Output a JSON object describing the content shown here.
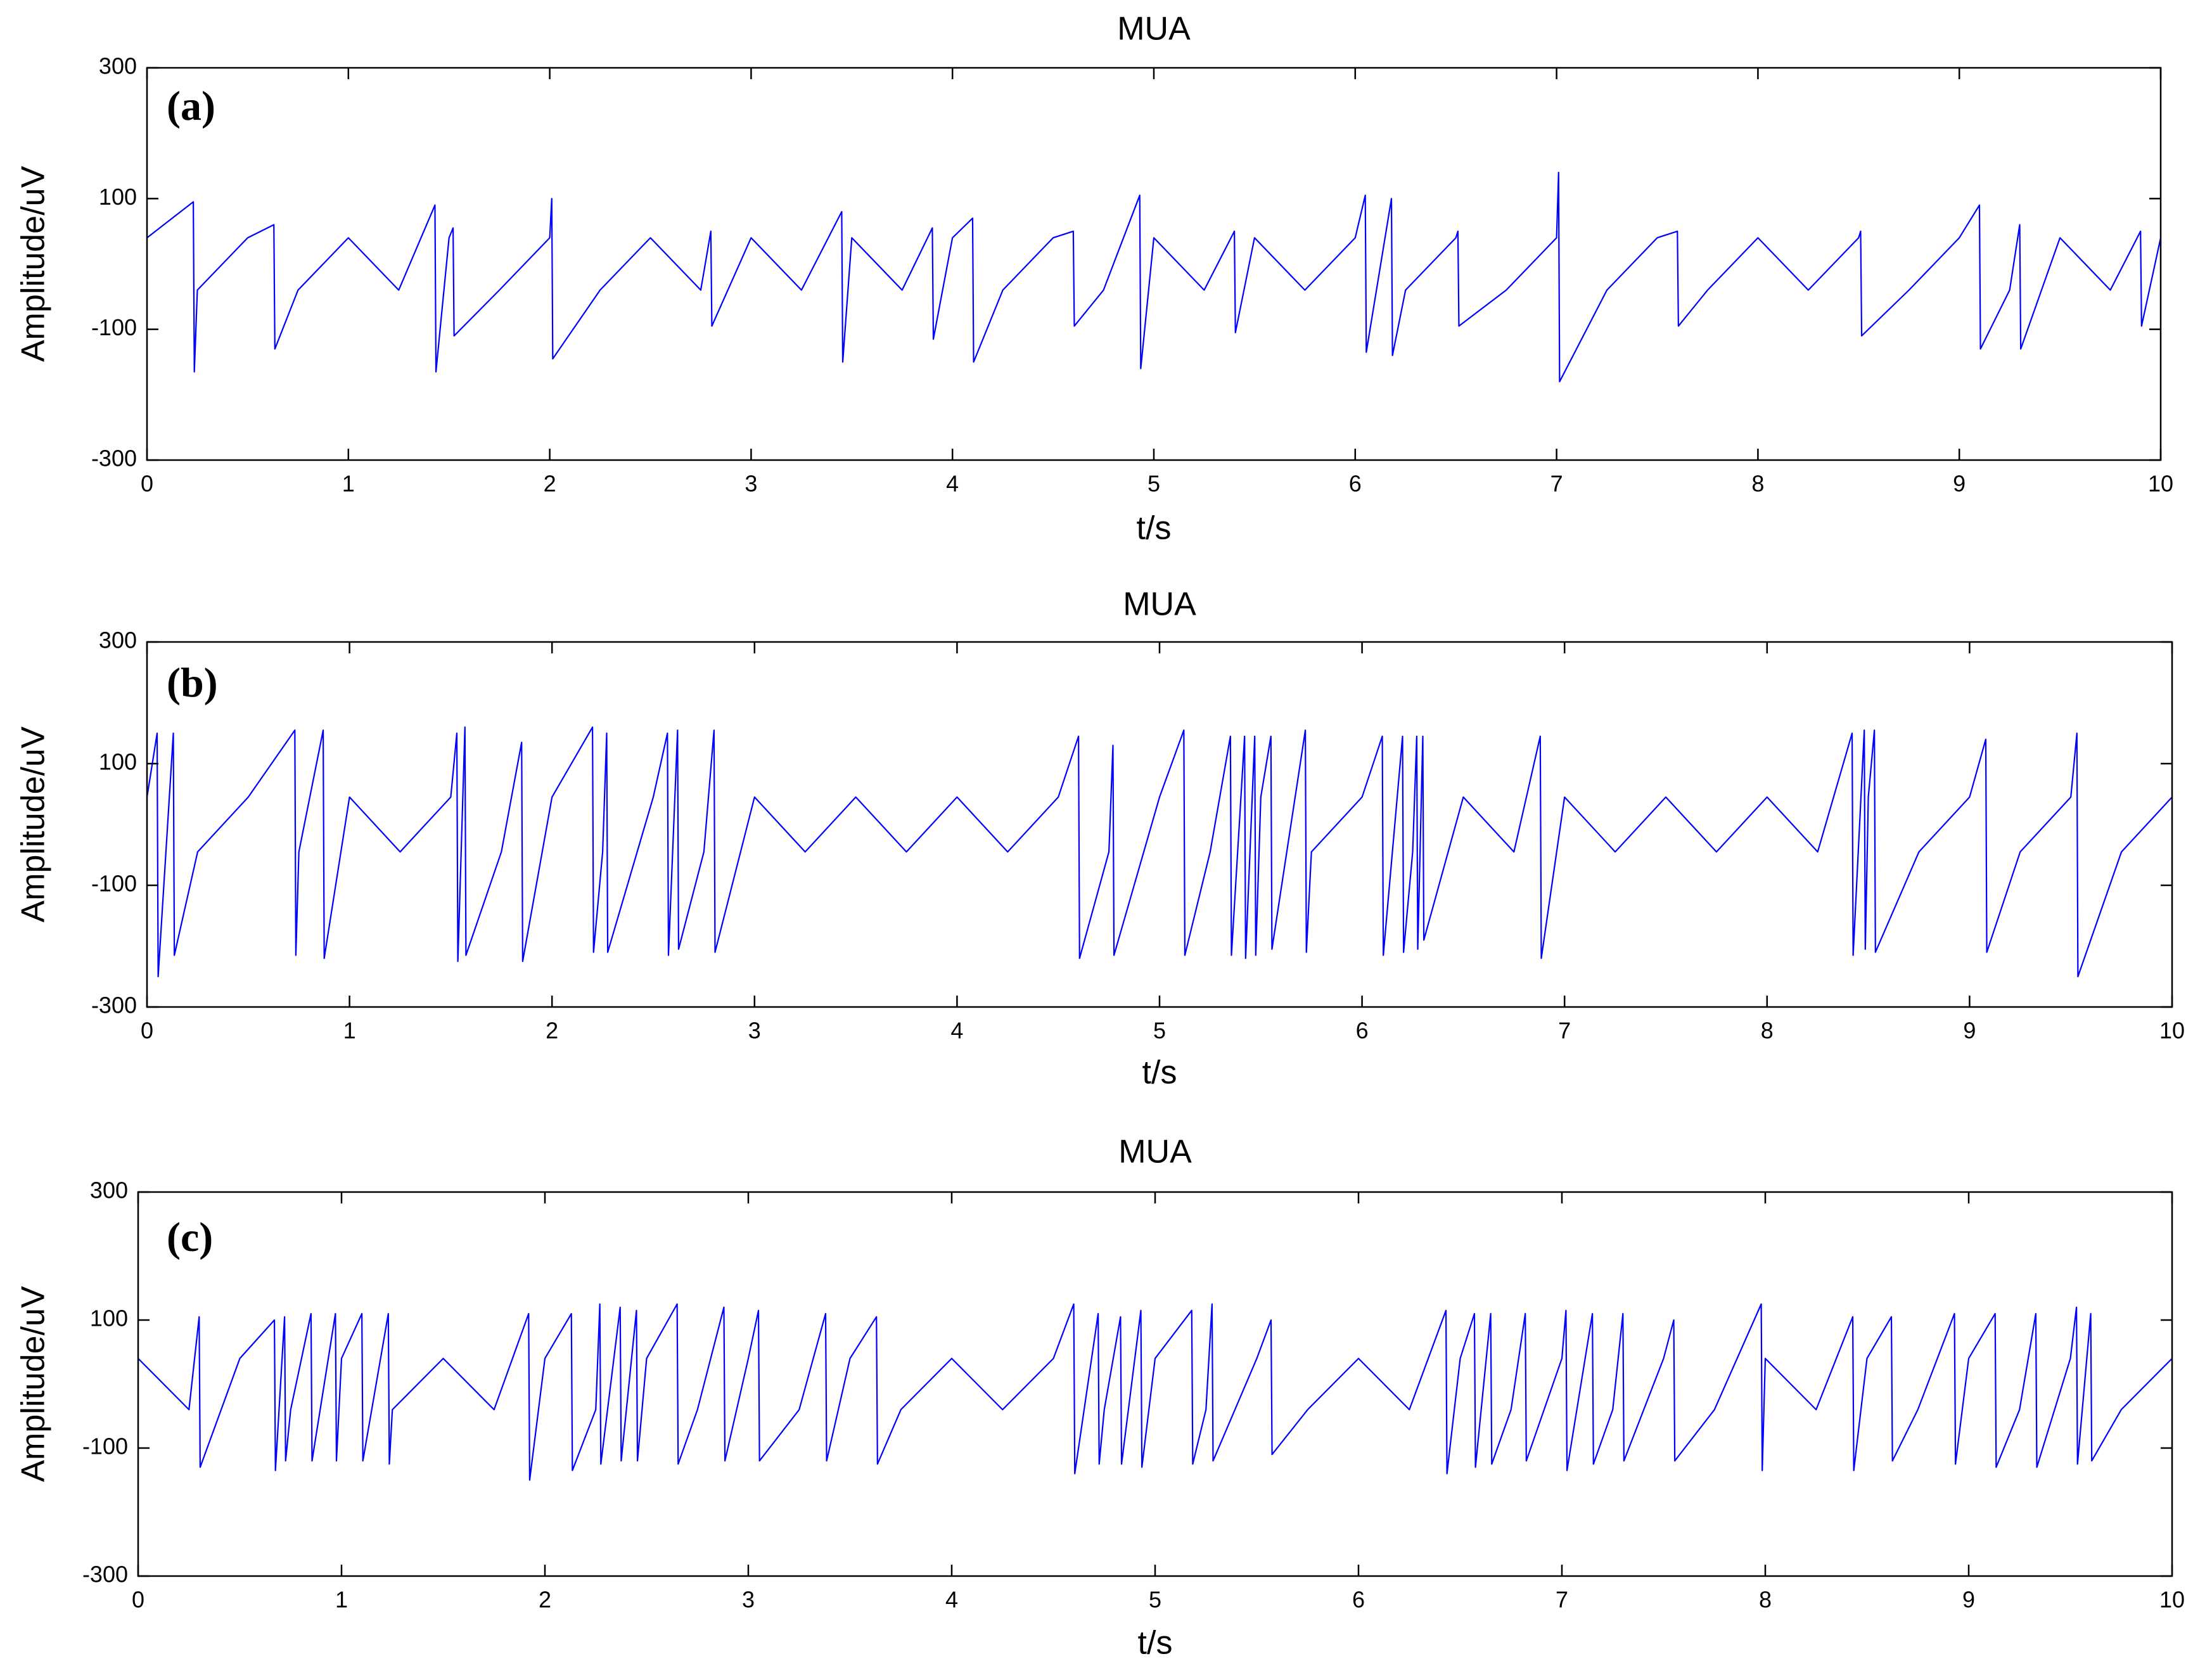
{
  "chart_data": [
    {
      "type": "line",
      "title": "MUA",
      "panel_label": "(a)",
      "xlabel": "t/s",
      "ylabel": "Amplitude/uV",
      "color": "#0000ff",
      "xlim": [
        0,
        10
      ],
      "xticks": [
        0,
        1,
        2,
        3,
        4,
        5,
        6,
        7,
        8,
        9,
        10
      ],
      "ylim": [
        -300,
        300
      ],
      "yticks": [
        -300,
        -100,
        100,
        300
      ],
      "x": [
        0,
        0.23,
        0.235,
        0.25,
        0.5,
        0.63,
        0.635,
        0.75,
        1,
        1.25,
        1.43,
        1.435,
        1.5,
        1.52,
        1.525,
        1.75,
        2,
        2.01,
        2.015,
        2.25,
        2.5,
        2.75,
        2.8,
        2.805,
        3,
        3.25,
        3.45,
        3.455,
        3.5,
        3.75,
        3.9,
        3.905,
        4,
        4.1,
        4.105,
        4.25,
        4.5,
        4.6,
        4.605,
        4.75,
        4.93,
        4.935,
        5,
        5.25,
        5.4,
        5.405,
        5.5,
        5.75,
        6,
        6.05,
        6.055,
        6.18,
        6.185,
        6.25,
        6.5,
        6.51,
        6.515,
        6.75,
        7,
        7.01,
        7.015,
        7.25,
        7.5,
        7.6,
        7.605,
        7.75,
        8,
        8.25,
        8.5,
        8.51,
        8.515,
        8.75,
        9,
        9.1,
        9.105,
        9.25,
        9.3,
        9.305,
        9.5,
        9.75,
        9.9,
        9.905,
        10
      ],
      "values": [
        40,
        95,
        -165,
        -40,
        40,
        60,
        -130,
        -40,
        40,
        -40,
        90,
        -165,
        40,
        55,
        -110,
        -40,
        40,
        100,
        -145,
        -40,
        40,
        -40,
        50,
        -95,
        40,
        -40,
        80,
        -150,
        40,
        -40,
        55,
        -115,
        40,
        70,
        -150,
        -40,
        40,
        50,
        -95,
        -40,
        105,
        -160,
        40,
        -40,
        50,
        -105,
        40,
        -40,
        40,
        105,
        -135,
        100,
        -140,
        -40,
        40,
        50,
        -95,
        -40,
        40,
        140,
        -180,
        -40,
        40,
        50,
        -95,
        -40,
        40,
        -40,
        40,
        50,
        -110,
        -40,
        40,
        90,
        -130,
        -40,
        60,
        -130,
        40,
        -40,
        50,
        -95,
        40
      ]
    },
    {
      "type": "line",
      "title": "MUA",
      "panel_label": "(b)",
      "xlabel": "t/s",
      "ylabel": "Amplitude/uV",
      "color": "#0000ff",
      "xlim": [
        0,
        10
      ],
      "xticks": [
        0,
        1,
        2,
        3,
        4,
        5,
        6,
        7,
        8,
        9,
        10
      ],
      "ylim": [
        -300,
        300
      ],
      "yticks": [
        -300,
        -100,
        100,
        300
      ],
      "x": [
        0,
        0.05,
        0.055,
        0.13,
        0.135,
        0.25,
        0.5,
        0.73,
        0.735,
        0.75,
        0.87,
        0.875,
        1,
        1.25,
        1.5,
        1.53,
        1.535,
        1.57,
        1.575,
        1.75,
        1.85,
        1.855,
        2,
        2.2,
        2.205,
        2.25,
        2.27,
        2.275,
        2.5,
        2.57,
        2.575,
        2.62,
        2.625,
        2.75,
        2.8,
        2.805,
        3,
        3.25,
        3.5,
        3.75,
        4,
        4.25,
        4.5,
        4.6,
        4.605,
        4.75,
        4.77,
        4.775,
        5,
        5.12,
        5.125,
        5.25,
        5.35,
        5.355,
        5.42,
        5.425,
        5.47,
        5.475,
        5.5,
        5.55,
        5.555,
        5.72,
        5.725,
        5.75,
        6,
        6.1,
        6.105,
        6.2,
        6.205,
        6.25,
        6.27,
        6.275,
        6.3,
        6.305,
        6.5,
        6.75,
        6.88,
        6.885,
        7,
        7.25,
        7.5,
        7.75,
        8,
        8.25,
        8.42,
        8.425,
        8.48,
        8.485,
        8.5,
        8.53,
        8.535,
        8.75,
        9,
        9.08,
        9.085,
        9.25,
        9.5,
        9.53,
        9.535,
        9.75,
        10
      ],
      "values": [
        45,
        150,
        -250,
        150,
        -215,
        -45,
        45,
        155,
        -215,
        -45,
        155,
        -220,
        45,
        -45,
        45,
        150,
        -225,
        160,
        -215,
        -45,
        135,
        -225,
        45,
        160,
        -210,
        -45,
        150,
        -210,
        45,
        150,
        -215,
        155,
        -205,
        -45,
        155,
        -210,
        45,
        -45,
        45,
        -45,
        45,
        -45,
        45,
        145,
        -220,
        -45,
        130,
        -215,
        45,
        155,
        -215,
        -45,
        145,
        -215,
        145,
        -220,
        145,
        -215,
        45,
        145,
        -205,
        155,
        -210,
        -45,
        45,
        145,
        -215,
        145,
        -210,
        -45,
        145,
        -205,
        145,
        -190,
        45,
        -45,
        145,
        -220,
        45,
        -45,
        45,
        -45,
        45,
        -45,
        150,
        -215,
        155,
        -205,
        45,
        155,
        -210,
        -45,
        45,
        140,
        -210,
        -45,
        45,
        150,
        -250,
        -45,
        45
      ]
    },
    {
      "type": "line",
      "title": "MUA",
      "panel_label": "(c)",
      "xlabel": "t/s",
      "ylabel": "Amplitude/uV",
      "color": "#0000ff",
      "xlim": [
        0,
        10
      ],
      "xticks": [
        0,
        1,
        2,
        3,
        4,
        5,
        6,
        7,
        8,
        9,
        10
      ],
      "ylim": [
        -300,
        300
      ],
      "yticks": [
        -300,
        -100,
        100,
        300
      ],
      "x": [
        0,
        0.25,
        0.3,
        0.305,
        0.5,
        0.67,
        0.675,
        0.72,
        0.725,
        0.75,
        0.85,
        0.855,
        0.97,
        0.975,
        1,
        1.1,
        1.105,
        1.23,
        1.235,
        1.25,
        1.5,
        1.75,
        1.92,
        1.925,
        2,
        2.13,
        2.135,
        2.25,
        2.27,
        2.275,
        2.37,
        2.375,
        2.45,
        2.455,
        2.5,
        2.65,
        2.655,
        2.75,
        2.88,
        2.885,
        3,
        3.05,
        3.055,
        3.25,
        3.38,
        3.385,
        3.5,
        3.63,
        3.635,
        3.75,
        4,
        4.25,
        4.5,
        4.6,
        4.605,
        4.72,
        4.725,
        4.75,
        4.83,
        4.835,
        4.93,
        4.935,
        5,
        5.18,
        5.185,
        5.25,
        5.28,
        5.285,
        5.5,
        5.57,
        5.575,
        5.75,
        6,
        6.25,
        6.43,
        6.435,
        6.5,
        6.57,
        6.575,
        6.65,
        6.655,
        6.75,
        6.82,
        6.825,
        7,
        7.02,
        7.025,
        7.15,
        7.155,
        7.25,
        7.3,
        7.305,
        7.5,
        7.55,
        7.555,
        7.75,
        7.98,
        7.985,
        8,
        8.25,
        8.43,
        8.435,
        8.5,
        8.62,
        8.625,
        8.75,
        8.93,
        8.935,
        9,
        9.13,
        9.135,
        9.25,
        9.33,
        9.335,
        9.5,
        9.53,
        9.535,
        9.6,
        9.605,
        9.75,
        10
      ],
      "values": [
        40,
        -40,
        105,
        -130,
        40,
        100,
        -135,
        105,
        -120,
        -40,
        110,
        -120,
        110,
        -120,
        40,
        110,
        -120,
        110,
        -125,
        -40,
        40,
        -40,
        110,
        -150,
        40,
        110,
        -135,
        -40,
        125,
        -125,
        120,
        -120,
        115,
        -120,
        40,
        125,
        -125,
        -40,
        120,
        -120,
        40,
        115,
        -120,
        -40,
        110,
        -120,
        40,
        105,
        -125,
        -40,
        40,
        -40,
        40,
        125,
        -140,
        110,
        -125,
        -40,
        105,
        -125,
        115,
        -130,
        40,
        115,
        -125,
        -40,
        125,
        -120,
        40,
        100,
        -110,
        -40,
        40,
        -40,
        115,
        -140,
        40,
        110,
        -130,
        110,
        -125,
        -40,
        110,
        -120,
        40,
        115,
        -135,
        110,
        -125,
        -40,
        110,
        -120,
        40,
        100,
        -120,
        -40,
        125,
        -135,
        40,
        -40,
        105,
        -135,
        40,
        105,
        -120,
        -40,
        110,
        -125,
        40,
        110,
        -130,
        -40,
        110,
        -130,
        40,
        120,
        -125,
        110,
        -120,
        -40,
        40
      ]
    }
  ]
}
